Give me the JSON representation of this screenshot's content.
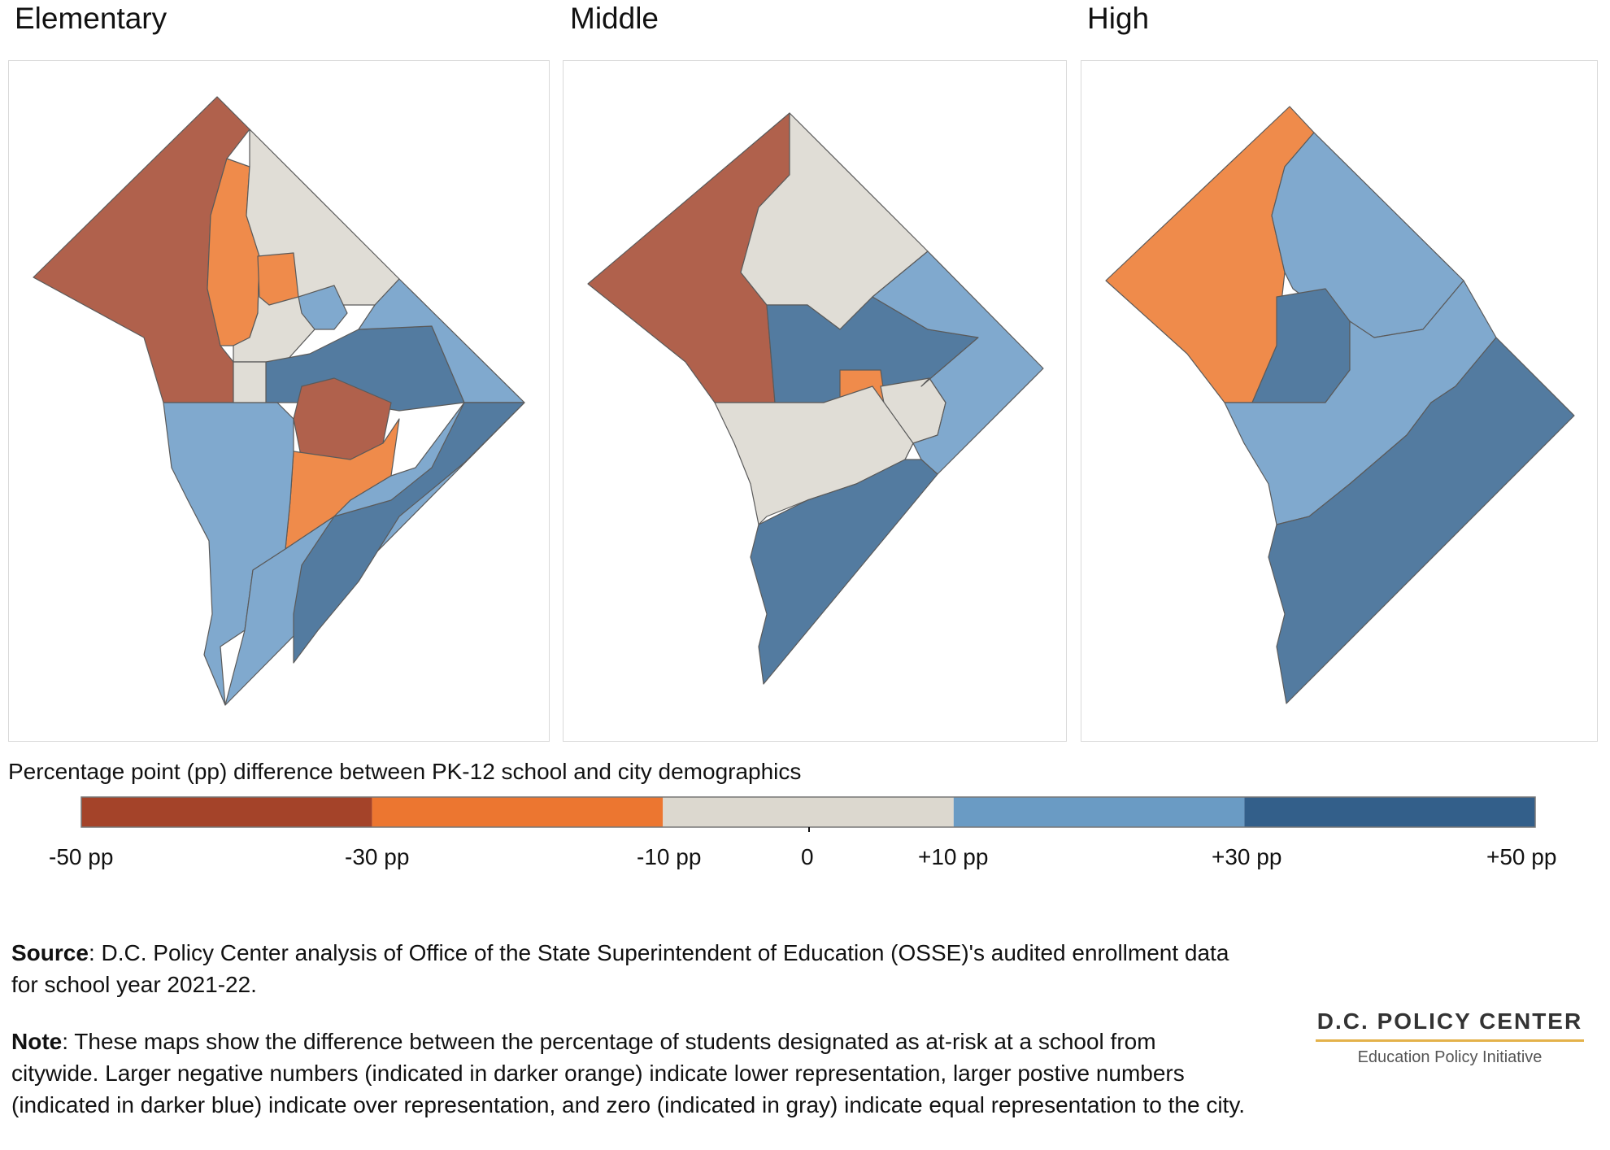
{
  "panels": [
    {
      "title": "Elementary"
    },
    {
      "title": "Middle"
    },
    {
      "title": "High"
    }
  ],
  "legend": {
    "title": "Percentage point (pp) difference between PK-12 school and city demographics",
    "bins": [
      {
        "from": -50,
        "to": -30,
        "color": "#a44329"
      },
      {
        "from": -30,
        "to": -10,
        "color": "#ec7630"
      },
      {
        "from": -10,
        "to": 10,
        "color": "#dcd8cf"
      },
      {
        "from": 10,
        "to": 30,
        "color": "#6a9bc4"
      },
      {
        "from": 30,
        "to": 50,
        "color": "#335f8a"
      }
    ],
    "ticks": [
      "-50 pp",
      "-30 pp",
      "-10 pp",
      "0",
      "+10 pp",
      "+30 pp",
      "+50 pp"
    ]
  },
  "map_colors": {
    "dark_orange": "#b0614c",
    "orange": "#ef8b4b",
    "gray": "#e0ddd6",
    "light_blue": "#80a9ce",
    "dark_blue": "#537ba0"
  },
  "footnotes": {
    "source_label": "Source",
    "source_text": ": D.C. Policy Center analysis of Office of the State Superintendent of Education (OSSE)'s audited enrollment data for school year 2021-22.",
    "note_label": "Note",
    "note_text": ": These maps show the difference between the percentage of students designated as at-risk at a school from citywide. Larger negative numbers (indicated in darker orange) indicate lower representation, larger postive numbers (indicated in darker blue) indicate over representation, and zero (indicated in gray) indicate equal representation to the city."
  },
  "logo": {
    "name": "D.C. POLICY CENTER",
    "subtitle": "Education Policy Initiative"
  }
}
